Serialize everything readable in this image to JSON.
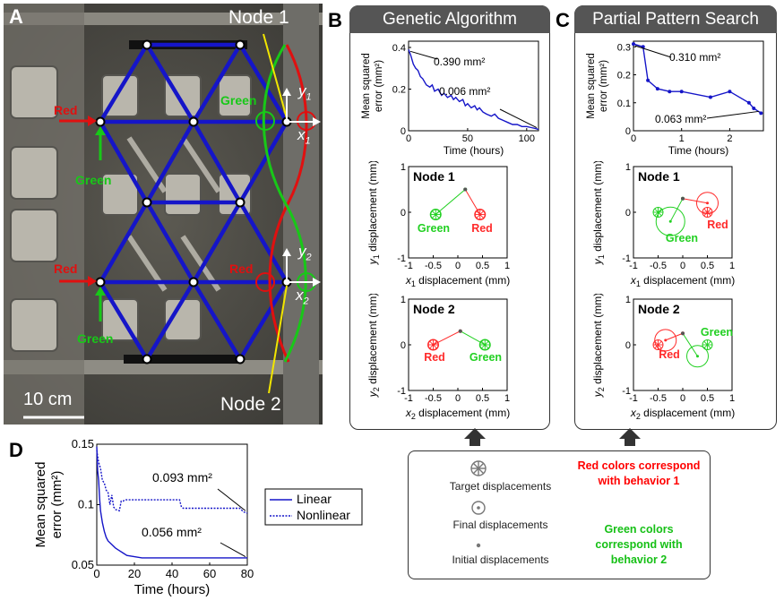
{
  "panel_letters": {
    "a": "A",
    "b": "B",
    "c": "C",
    "d": "D"
  },
  "panel_a": {
    "node1_label": "Node 1",
    "node2_label": "Node 2",
    "red_label": "Red",
    "green_label": "Green",
    "axis_y1": "y",
    "axis_y1_sub": "1",
    "axis_x1": "x",
    "axis_x1_sub": "1",
    "axis_y2": "y",
    "axis_y2_sub": "2",
    "axis_x2": "x",
    "axis_x2_sub": "2",
    "scale_bar": "10 cm",
    "colors": {
      "lattice": "#1515c8",
      "red": "#e01010",
      "green": "#18c818",
      "node_line": "#f2e600"
    }
  },
  "panel_b": {
    "header": "Genetic Algorithm",
    "ann_start": "0.390 mm²",
    "ann_end": "0.006 mm²",
    "node1_title": "Node 1",
    "node2_title": "Node 2",
    "red": "Red",
    "green": "Green"
  },
  "panel_c": {
    "header": "Partial Pattern Search",
    "ann_start": "0.310 mm²",
    "ann_end": "0.063 mm²",
    "node1_title": "Node 1",
    "node2_title": "Node 2",
    "red": "Red",
    "green": "Green"
  },
  "panel_d": {
    "ann_nonlinear": "0.093 mm²",
    "ann_linear": "0.056 mm²",
    "legend_linear": "Linear",
    "legend_nonlinear": "Nonlinear"
  },
  "legend_box": {
    "target": "Target displacements",
    "final": "Final displacements",
    "initial": "Initial displacements",
    "red_note": "Red colors correspond with behavior 1",
    "green_note": "Green colors correspond with behavior 2"
  },
  "chart_data": [
    {
      "id": "ga-error",
      "type": "line",
      "title": "",
      "xlabel": "Time (hours)",
      "ylabel": "Mean squared error (mm²)",
      "xlim": [
        0,
        110
      ],
      "ylim": [
        0,
        0.43
      ],
      "xticks": [
        0,
        50,
        100
      ],
      "yticks": [
        0,
        0.2,
        0.4
      ],
      "x": [
        0,
        2,
        4,
        6,
        8,
        10,
        12,
        15,
        18,
        20,
        22,
        25,
        28,
        30,
        33,
        36,
        38,
        40,
        43,
        46,
        48,
        50,
        53,
        56,
        58,
        60,
        63,
        66,
        70,
        73,
        76,
        80,
        84,
        88,
        92,
        96,
        100,
        104,
        108,
        110
      ],
      "y": [
        0.39,
        0.36,
        0.32,
        0.3,
        0.29,
        0.26,
        0.25,
        0.22,
        0.21,
        0.22,
        0.19,
        0.2,
        0.17,
        0.18,
        0.16,
        0.17,
        0.15,
        0.16,
        0.14,
        0.15,
        0.12,
        0.13,
        0.11,
        0.12,
        0.1,
        0.11,
        0.09,
        0.08,
        0.07,
        0.08,
        0.06,
        0.05,
        0.04,
        0.03,
        0.03,
        0.02,
        0.02,
        0.015,
        0.01,
        0.006
      ]
    },
    {
      "id": "pps-error",
      "type": "line",
      "title": "",
      "xlabel": "Time (hours)",
      "ylabel": "Mean squared error (mm²)",
      "xlim": [
        0,
        2.7
      ],
      "ylim": [
        0,
        0.32
      ],
      "xticks": [
        0,
        1,
        2
      ],
      "yticks": [
        0,
        0.1,
        0.2,
        0.3
      ],
      "x": [
        0,
        0.2,
        0.3,
        0.5,
        0.75,
        1.0,
        1.6,
        2.0,
        2.4,
        2.5,
        2.65
      ],
      "y": [
        0.31,
        0.3,
        0.18,
        0.15,
        0.14,
        0.14,
        0.12,
        0.14,
        0.1,
        0.08,
        0.063
      ]
    },
    {
      "id": "ga-node1",
      "type": "scatter",
      "xlabel": "x1 displacement (mm)",
      "ylabel": "y1 displacement (mm)",
      "xlim": [
        -1,
        1
      ],
      "ylim": [
        -1,
        1
      ],
      "xticks": [
        -1,
        -0.5,
        0,
        0.5,
        1
      ],
      "yticks": [
        -1,
        0,
        1
      ],
      "series": [
        {
          "name": "Green",
          "initial": [
            0.15,
            0.5
          ],
          "final": [
            -0.45,
            -0.05
          ],
          "target": [
            -0.45,
            -0.05
          ]
        },
        {
          "name": "Red",
          "initial": [
            0.15,
            0.5
          ],
          "final": [
            0.45,
            -0.05
          ],
          "target": [
            0.45,
            -0.05
          ]
        }
      ]
    },
    {
      "id": "ga-node2",
      "type": "scatter",
      "xlabel": "x2 displacement (mm)",
      "ylabel": "y2 displacement (mm)",
      "xlim": [
        -1,
        1
      ],
      "ylim": [
        -1,
        1
      ],
      "xticks": [
        -1,
        -0.5,
        0,
        0.5,
        1
      ],
      "yticks": [
        -1,
        0,
        1
      ],
      "series": [
        {
          "name": "Red",
          "initial": [
            0.05,
            0.3
          ],
          "final": [
            -0.5,
            0.0
          ],
          "target": [
            -0.5,
            0.0
          ]
        },
        {
          "name": "Green",
          "initial": [
            0.05,
            0.3
          ],
          "final": [
            0.55,
            0.0
          ],
          "target": [
            0.55,
            0.0
          ]
        }
      ]
    },
    {
      "id": "pps-node1",
      "type": "scatter",
      "xlabel": "x1 displacement (mm)",
      "ylabel": "y1 displacement (mm)",
      "xlim": [
        -1,
        1
      ],
      "ylim": [
        -1,
        1
      ],
      "xticks": [
        -1,
        -0.5,
        0,
        0.5,
        1
      ],
      "yticks": [
        -1,
        0,
        1
      ],
      "series": [
        {
          "name": "Green",
          "initial": [
            0.0,
            0.3
          ],
          "final": [
            -0.25,
            -0.2
          ],
          "target": [
            -0.5,
            0.0
          ]
        },
        {
          "name": "Red",
          "initial": [
            0.0,
            0.3
          ],
          "final": [
            0.5,
            0.2
          ],
          "target": [
            0.5,
            0.0
          ]
        }
      ]
    },
    {
      "id": "pps-node2",
      "type": "scatter",
      "xlabel": "x2 displacement (mm)",
      "ylabel": "y2 displacement (mm)",
      "xlim": [
        -1,
        1
      ],
      "ylim": [
        -1,
        1
      ],
      "xticks": [
        -1,
        -0.5,
        0,
        0.5,
        1
      ],
      "yticks": [
        -1,
        0,
        1
      ],
      "series": [
        {
          "name": "Red",
          "initial": [
            0.0,
            0.25
          ],
          "final": [
            -0.35,
            0.1
          ],
          "target": [
            -0.5,
            0.0
          ]
        },
        {
          "name": "Green",
          "initial": [
            0.0,
            0.25
          ],
          "final": [
            0.3,
            -0.25
          ],
          "target": [
            0.5,
            0.0
          ]
        }
      ]
    },
    {
      "id": "d-error",
      "type": "line",
      "title": "",
      "xlabel": "Time (hours)",
      "ylabel": "Mean squared error (mm²)",
      "xlim": [
        0,
        80
      ],
      "ylim": [
        0.05,
        0.15
      ],
      "xticks": [
        0,
        20,
        40,
        60,
        80
      ],
      "yticks": [
        0.05,
        0.1,
        0.15
      ],
      "series": [
        {
          "name": "Linear",
          "style": "solid",
          "x": [
            0,
            0.5,
            1,
            1.5,
            2,
            3,
            4,
            5,
            6,
            8,
            10,
            12,
            14,
            16,
            20,
            24,
            30,
            40,
            50,
            60,
            70,
            80
          ],
          "y": [
            0.148,
            0.128,
            0.12,
            0.105,
            0.095,
            0.085,
            0.078,
            0.073,
            0.07,
            0.067,
            0.064,
            0.062,
            0.06,
            0.058,
            0.057,
            0.056,
            0.056,
            0.056,
            0.056,
            0.056,
            0.056,
            0.056
          ]
        },
        {
          "name": "Nonlinear",
          "style": "dotted",
          "x": [
            0,
            0.5,
            1,
            2,
            3,
            4,
            5,
            6,
            7,
            8,
            9,
            10,
            12,
            13,
            14,
            15,
            16,
            20,
            30,
            40,
            44,
            45,
            46,
            50,
            60,
            70,
            76,
            78,
            80
          ],
          "y": [
            0.145,
            0.14,
            0.135,
            0.13,
            0.12,
            0.118,
            0.112,
            0.11,
            0.1,
            0.108,
            0.098,
            0.096,
            0.095,
            0.103,
            0.103,
            0.104,
            0.104,
            0.104,
            0.104,
            0.104,
            0.104,
            0.098,
            0.097,
            0.097,
            0.097,
            0.097,
            0.097,
            0.094,
            0.093
          ]
        }
      ]
    }
  ]
}
